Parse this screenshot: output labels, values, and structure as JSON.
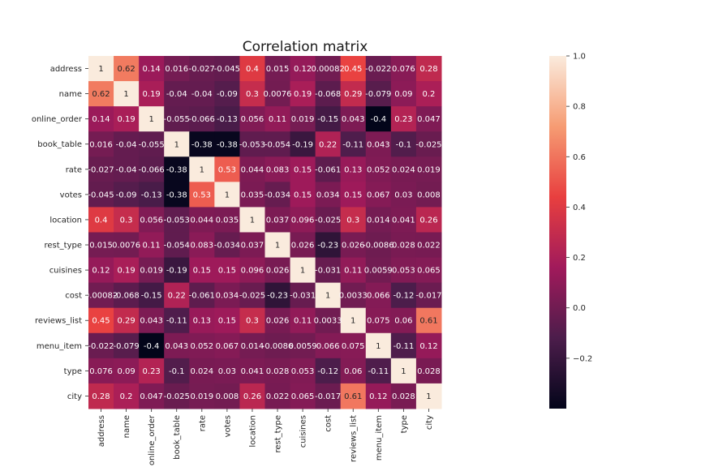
{
  "chart_data": {
    "type": "heatmap",
    "title": "Correlation matrix",
    "labels": [
      "address",
      "name",
      "online_order",
      "book_table",
      "rate",
      "votes",
      "location",
      "rest_type",
      "cuisines",
      "cost",
      "reviews_list",
      "menu_item",
      "type",
      "city"
    ],
    "values": [
      [
        1,
        0.62,
        0.14,
        0.016,
        -0.027,
        -0.045,
        0.4,
        0.015,
        0.12,
        0.00082,
        0.45,
        -0.022,
        0.076,
        0.28
      ],
      [
        0.62,
        1,
        0.19,
        -0.04,
        -0.04,
        -0.09,
        0.3,
        0.0076,
        0.19,
        -0.068,
        0.29,
        -0.079,
        0.09,
        0.2
      ],
      [
        0.14,
        0.19,
        1,
        -0.055,
        -0.066,
        -0.13,
        0.056,
        0.11,
        0.019,
        -0.15,
        0.043,
        -0.4,
        0.23,
        0.047
      ],
      [
        0.016,
        -0.04,
        -0.055,
        1,
        -0.38,
        -0.38,
        -0.053,
        -0.054,
        -0.19,
        0.22,
        -0.11,
        0.043,
        -0.1,
        -0.025
      ],
      [
        -0.027,
        -0.04,
        -0.066,
        -0.38,
        1,
        0.53,
        0.044,
        0.083,
        0.15,
        -0.061,
        0.13,
        0.052,
        0.024,
        0.019
      ],
      [
        -0.045,
        -0.09,
        -0.13,
        -0.38,
        0.53,
        1,
        0.035,
        -0.034,
        0.15,
        0.034,
        0.15,
        0.067,
        0.03,
        0.008
      ],
      [
        0.4,
        0.3,
        0.056,
        -0.053,
        0.044,
        0.035,
        1,
        0.037,
        0.096,
        -0.025,
        0.3,
        0.014,
        0.041,
        0.26
      ],
      [
        0.015,
        0.0076,
        0.11,
        -0.054,
        0.083,
        -0.034,
        0.037,
        1,
        0.026,
        -0.23,
        0.026,
        -0.0086,
        0.028,
        0.022
      ],
      [
        0.12,
        0.19,
        0.019,
        -0.19,
        0.15,
        0.15,
        0.096,
        0.026,
        1,
        -0.031,
        0.11,
        0.0059,
        0.053,
        0.065
      ],
      [
        0.00082,
        -0.068,
        -0.15,
        0.22,
        -0.061,
        0.034,
        -0.025,
        -0.23,
        -0.031,
        1,
        0.0033,
        0.066,
        -0.12,
        -0.017
      ],
      [
        0.45,
        0.29,
        0.043,
        -0.11,
        0.13,
        0.15,
        0.3,
        0.026,
        0.11,
        0.0033,
        1,
        0.075,
        0.06,
        0.61
      ],
      [
        -0.022,
        -0.079,
        -0.4,
        0.043,
        0.052,
        0.067,
        0.014,
        -0.0086,
        0.0059,
        0.066,
        0.075,
        1,
        -0.11,
        0.12
      ],
      [
        0.076,
        0.09,
        0.23,
        -0.1,
        0.024,
        0.03,
        0.041,
        0.028,
        0.053,
        -0.12,
        0.06,
        -0.11,
        1,
        0.028
      ],
      [
        0.28,
        0.2,
        0.047,
        -0.025,
        0.019,
        0.008,
        0.26,
        0.022,
        0.065,
        -0.017,
        0.61,
        0.12,
        0.028,
        1
      ]
    ],
    "cell_labels": [
      [
        "1",
        "0.62",
        "0.14",
        "0.016",
        "-0.027",
        "-0.045",
        "0.4",
        "0.015",
        "0.12",
        "0.00082",
        "0.45",
        "-0.022",
        "0.076",
        "0.28"
      ],
      [
        "0.62",
        "1",
        "0.19",
        "-0.04",
        "-0.04",
        "-0.09",
        "0.3",
        "0.0076",
        "0.19",
        "-0.068",
        "0.29",
        "-0.079",
        "0.09",
        "0.2"
      ],
      [
        "0.14",
        "0.19",
        "1",
        "-0.055",
        "-0.066",
        "-0.13",
        "0.056",
        "0.11",
        "0.019",
        "-0.15",
        "0.043",
        "-0.4",
        "0.23",
        "0.047"
      ],
      [
        "0.016",
        "-0.04",
        "-0.055",
        "1",
        "-0.38",
        "-0.38",
        "-0.053",
        "-0.054",
        "-0.19",
        "0.22",
        "-0.11",
        "0.043",
        "-0.1",
        "-0.025"
      ],
      [
        "-0.027",
        "-0.04",
        "-0.066",
        "-0.38",
        "1",
        "0.53",
        "0.044",
        "0.083",
        "0.15",
        "-0.061",
        "0.13",
        "0.052",
        "0.024",
        "0.019"
      ],
      [
        "-0.045",
        "-0.09",
        "-0.13",
        "-0.38",
        "0.53",
        "1",
        "0.035",
        "-0.034",
        "0.15",
        "0.034",
        "0.15",
        "0.067",
        "0.03",
        "0.008"
      ],
      [
        "0.4",
        "0.3",
        "0.056",
        "-0.053",
        "0.044",
        "0.035",
        "1",
        "0.037",
        "0.096",
        "-0.025",
        "0.3",
        "0.014",
        "0.041",
        "0.26"
      ],
      [
        "0.015",
        "0.0076",
        "0.11",
        "-0.054",
        "0.083",
        "-0.034",
        "0.037",
        "1",
        "0.026",
        "-0.23",
        "0.026",
        "-0.0086",
        "0.028",
        "0.022"
      ],
      [
        "0.12",
        "0.19",
        "0.019",
        "-0.19",
        "0.15",
        "0.15",
        "0.096",
        "0.026",
        "1",
        "-0.031",
        "0.11",
        "0.0059",
        "0.053",
        "0.065"
      ],
      [
        "0.00082",
        "-0.068",
        "-0.15",
        "0.22",
        "-0.061",
        "0.034",
        "-0.025",
        "-0.23",
        "-0.031",
        "1",
        "0.0033",
        "0.066",
        "-0.12",
        "-0.017"
      ],
      [
        "0.45",
        "0.29",
        "0.043",
        "-0.11",
        "0.13",
        "0.15",
        "0.3",
        "0.026",
        "0.11",
        "0.0033",
        "1",
        "0.075",
        "0.06",
        "0.61"
      ],
      [
        "-0.022",
        "-0.079",
        "-0.4",
        "0.043",
        "0.052",
        "0.067",
        "0.014",
        "-0.0086",
        "0.0059",
        "0.066",
        "0.075",
        "1",
        "-0.11",
        "0.12"
      ],
      [
        "0.076",
        "0.09",
        "0.23",
        "-0.1",
        "0.024",
        "0.03",
        "0.041",
        "0.028",
        "0.053",
        "-0.12",
        "0.06",
        "-0.11",
        "1",
        "0.028"
      ],
      [
        "0.28",
        "0.2",
        "0.047",
        "-0.025",
        "0.019",
        "0.008",
        "0.26",
        "0.022",
        "0.065",
        "-0.017",
        "0.61",
        "0.12",
        "0.028",
        "1"
      ]
    ],
    "colorbar": {
      "min": -0.4,
      "max": 1.0,
      "ticks": [
        -0.2,
        0.0,
        0.2,
        0.4,
        0.6,
        0.8,
        1.0
      ],
      "tick_labels": [
        "−0.2",
        "0.0",
        "0.2",
        "0.4",
        "0.6",
        "0.8",
        "1.0"
      ]
    },
    "colormap": [
      "#03051a",
      "#4c1d4b",
      "#a11a5b",
      "#e83f3f",
      "#f69c73",
      "#faebdd"
    ]
  }
}
